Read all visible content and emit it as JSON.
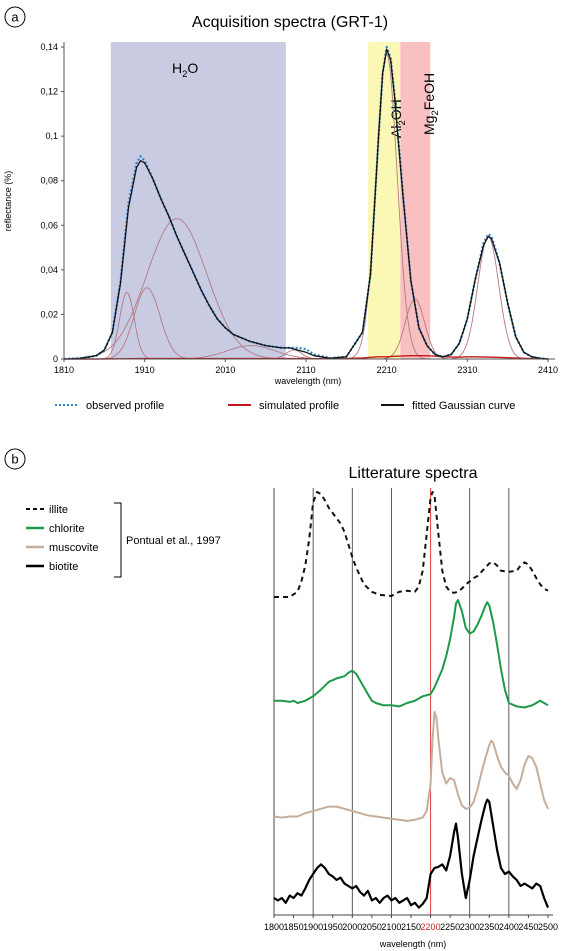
{
  "colors": {
    "band_h2o": "#c9cbe3",
    "band_aloh": "#fbf8b6",
    "band_mgfeoh": "#f8c0c0",
    "observed": "#2f83c6",
    "simulated": "#c21a1a",
    "component": "#b37a86",
    "fitted": "#111111",
    "illite": "#111111",
    "chlorite": "#1d9a47",
    "muscovite": "#c6ae9c",
    "biotite": "#000000",
    "ref_line": "#e04040",
    "ref_tick": "#d02020"
  },
  "panel_a": {
    "label": "a",
    "legend": {
      "observed": "observed profile",
      "simulated": "simulated profile",
      "fitted": "fitted Gaussian curve"
    }
  },
  "panel_b": {
    "label": "b",
    "legend_items": [
      "illite",
      "chlorite",
      "muscovite",
      "biotite"
    ],
    "reference": "Pontual et al., 1997"
  },
  "chart_data": [
    {
      "type": "line",
      "title": "Acquisition spectra (GRT-1)",
      "xlabel": "wavelength (nm)",
      "ylabel": "reflectance (%)",
      "xlim": [
        1810,
        2410
      ],
      "ylim": [
        0,
        0.14
      ],
      "x_ticks": [
        "1810",
        "1910",
        "2010",
        "2110",
        "2210",
        "2310",
        "2410"
      ],
      "y_ticks": [
        "0",
        "0,02",
        "0,04",
        "0,06",
        "0,08",
        "0,1",
        "0,12",
        "0,14"
      ],
      "bands": [
        {
          "label_main": "H",
          "label_sub": "2",
          "label_end": "O",
          "from": 1868,
          "to": 2085
        },
        {
          "label_main": "Al",
          "label_sub": "2",
          "label_end": "OH",
          "from": 2187,
          "to": 2227
        },
        {
          "label_main": "Mg",
          "label_sub": "2",
          "label_end": "FeOH",
          "from": 2227,
          "to": 2264
        }
      ],
      "series": [
        {
          "name": "observed profile",
          "style": "dotted",
          "x": [
            1810,
            1830,
            1850,
            1860,
            1870,
            1880,
            1890,
            1900,
            1905,
            1910,
            1920,
            1930,
            1940,
            1950,
            1960,
            1970,
            1980,
            1990,
            2000,
            2010,
            2020,
            2040,
            2060,
            2080,
            2090,
            2100,
            2110,
            2120,
            2140,
            2160,
            2180,
            2190,
            2200,
            2205,
            2210,
            2215,
            2220,
            2230,
            2240,
            2250,
            2260,
            2270,
            2280,
            2290,
            2300,
            2310,
            2320,
            2330,
            2336,
            2340,
            2350,
            2360,
            2370,
            2380,
            2390,
            2400,
            2410
          ],
          "y": [
            0,
            0.0003,
            0.0015,
            0.004,
            0.012,
            0.035,
            0.07,
            0.088,
            0.091,
            0.089,
            0.081,
            0.072,
            0.064,
            0.055,
            0.047,
            0.039,
            0.031,
            0.024,
            0.018,
            0.014,
            0.011,
            0.008,
            0.006,
            0.005,
            0.005,
            0.005,
            0.0045,
            0.002,
            0.0004,
            0.001,
            0.012,
            0.038,
            0.1,
            0.128,
            0.14,
            0.135,
            0.118,
            0.075,
            0.035,
            0.014,
            0.006,
            0.002,
            0.001,
            0.002,
            0.007,
            0.018,
            0.036,
            0.052,
            0.056,
            0.055,
            0.043,
            0.025,
            0.01,
            0.003,
            0.001,
            0.0003,
            0
          ]
        },
        {
          "name": "simulated profile",
          "style": "solid",
          "x": [
            1810,
            1850,
            1880,
            1910,
            1950,
            2000,
            2050,
            2100,
            2150,
            2180,
            2200,
            2210,
            2220,
            2240,
            2260,
            2280,
            2300,
            2310,
            2320,
            2340,
            2360,
            2380,
            2410
          ],
          "y": [
            0,
            0,
            0.0001,
            0.0002,
            0.0002,
            0.0002,
            0.0002,
            0.0002,
            0.0001,
            0.0005,
            0.001,
            0.001,
            0.0012,
            0.0015,
            0.0015,
            0.001,
            0.0008,
            0.001,
            0.001,
            0.0008,
            0.0006,
            0.0003,
            0
          ]
        },
        {
          "name": "fitted Gaussian curve",
          "style": "solid",
          "x": [
            1810,
            1830,
            1850,
            1860,
            1870,
            1880,
            1890,
            1900,
            1905,
            1910,
            1920,
            1930,
            1940,
            1950,
            1960,
            1970,
            1980,
            1990,
            2000,
            2010,
            2020,
            2040,
            2060,
            2080,
            2090,
            2100,
            2110,
            2120,
            2140,
            2160,
            2180,
            2190,
            2200,
            2205,
            2210,
            2215,
            2220,
            2230,
            2240,
            2250,
            2260,
            2270,
            2280,
            2290,
            2300,
            2310,
            2320,
            2330,
            2336,
            2340,
            2350,
            2360,
            2370,
            2380,
            2390,
            2400,
            2410
          ],
          "y": [
            0,
            0.0003,
            0.0015,
            0.004,
            0.012,
            0.034,
            0.068,
            0.086,
            0.089,
            0.088,
            0.081,
            0.072,
            0.064,
            0.055,
            0.047,
            0.039,
            0.031,
            0.024,
            0.018,
            0.014,
            0.011,
            0.008,
            0.006,
            0.005,
            0.005,
            0.004,
            0.003,
            0.0015,
            0.0003,
            0.001,
            0.012,
            0.038,
            0.1,
            0.128,
            0.139,
            0.134,
            0.117,
            0.074,
            0.035,
            0.014,
            0.006,
            0.002,
            0.001,
            0.002,
            0.007,
            0.018,
            0.036,
            0.051,
            0.055,
            0.054,
            0.043,
            0.025,
            0.01,
            0.003,
            0.001,
            0.0003,
            0
          ]
        }
      ],
      "gaussians": [
        {
          "center": 1888,
          "amp": 0.03,
          "sigma": 9
        },
        {
          "center": 1913,
          "amp": 0.032,
          "sigma": 16
        },
        {
          "center": 1950,
          "amp": 0.063,
          "sigma": 37
        },
        {
          "center": 2042,
          "amp": 0.006,
          "sigma": 30
        },
        {
          "center": 2095,
          "amp": 0.004,
          "sigma": 10
        },
        {
          "center": 2210,
          "amp": 0.137,
          "sigma": 13
        },
        {
          "center": 2245,
          "amp": 0.027,
          "sigma": 12
        },
        {
          "center": 2336,
          "amp": 0.055,
          "sigma": 13
        }
      ],
      "legend": "bottom"
    },
    {
      "type": "line",
      "title": "Litterature spectra",
      "xlabel": "wavelength (nm)",
      "xlim": [
        1800,
        2500
      ],
      "x_ticks": [
        "1800",
        "1850",
        "1900",
        "1950",
        "2000",
        "2050",
        "2100",
        "2150",
        "2200",
        "2250",
        "2300",
        "2350",
        "2400",
        "2450",
        "2500"
      ],
      "highlight_tick": "2200",
      "highlight_x": 2200,
      "grid_lines": [
        1900,
        2000,
        2100,
        2300,
        2400
      ],
      "offset_stacked": true,
      "series": [
        {
          "name": "illite",
          "style": "dashed",
          "x": [
            1800,
            1820,
            1840,
            1860,
            1870,
            1880,
            1890,
            1900,
            1910,
            1920,
            1930,
            1940,
            1950,
            1960,
            1970,
            1980,
            1990,
            2000,
            2010,
            2020,
            2030,
            2050,
            2070,
            2100,
            2120,
            2140,
            2160,
            2170,
            2180,
            2190,
            2200,
            2205,
            2210,
            2220,
            2230,
            2240,
            2250,
            2260,
            2270,
            2280,
            2290,
            2300,
            2310,
            2320,
            2340,
            2350,
            2360,
            2370,
            2380,
            2400,
            2420,
            2430,
            2440,
            2450,
            2460,
            2470,
            2480,
            2490,
            2500
          ],
          "y": [
            0.0,
            0.0,
            0.0,
            0.05,
            0.15,
            0.3,
            0.55,
            0.9,
            1.0,
            0.98,
            0.92,
            0.85,
            0.8,
            0.75,
            0.7,
            0.62,
            0.5,
            0.38,
            0.28,
            0.2,
            0.12,
            0.05,
            0.02,
            0.01,
            0.05,
            0.06,
            0.05,
            0.1,
            0.25,
            0.6,
            0.95,
            1.0,
            0.97,
            0.6,
            0.25,
            0.1,
            0.05,
            0.04,
            0.05,
            0.08,
            0.12,
            0.15,
            0.18,
            0.2,
            0.28,
            0.32,
            0.33,
            0.3,
            0.25,
            0.24,
            0.25,
            0.3,
            0.33,
            0.31,
            0.25,
            0.18,
            0.12,
            0.08,
            0.06
          ]
        },
        {
          "name": "chlorite",
          "style": "solid",
          "x": [
            1800,
            1820,
            1840,
            1850,
            1860,
            1880,
            1900,
            1920,
            1940,
            1960,
            1980,
            1990,
            2000,
            2010,
            2020,
            2030,
            2040,
            2050,
            2060,
            2080,
            2100,
            2120,
            2140,
            2160,
            2180,
            2200,
            2210,
            2220,
            2230,
            2240,
            2250,
            2260,
            2265,
            2270,
            2280,
            2290,
            2300,
            2310,
            2320,
            2330,
            2340,
            2345,
            2350,
            2360,
            2370,
            2380,
            2390,
            2400,
            2420,
            2440,
            2460,
            2480,
            2490,
            2500
          ],
          "y": [
            0.1,
            0.1,
            0.09,
            0.1,
            0.08,
            0.1,
            0.14,
            0.2,
            0.27,
            0.3,
            0.32,
            0.35,
            0.37,
            0.34,
            0.28,
            0.22,
            0.16,
            0.1,
            0.08,
            0.06,
            0.06,
            0.05,
            0.08,
            0.1,
            0.14,
            0.16,
            0.22,
            0.3,
            0.38,
            0.5,
            0.65,
            0.85,
            0.97,
            1.0,
            0.9,
            0.75,
            0.7,
            0.72,
            0.78,
            0.86,
            0.95,
            0.98,
            0.95,
            0.8,
            0.6,
            0.38,
            0.2,
            0.08,
            0.05,
            0.04,
            0.06,
            0.1,
            0.08,
            0.06
          ]
        },
        {
          "name": "muscovite",
          "style": "solid",
          "x": [
            1800,
            1820,
            1840,
            1860,
            1880,
            1900,
            1920,
            1940,
            1960,
            1980,
            2000,
            2020,
            2040,
            2060,
            2080,
            2100,
            2120,
            2140,
            2160,
            2180,
            2190,
            2200,
            2205,
            2210,
            2215,
            2220,
            2230,
            2240,
            2250,
            2260,
            2270,
            2280,
            2290,
            2300,
            2310,
            2320,
            2330,
            2340,
            2350,
            2355,
            2360,
            2370,
            2380,
            2390,
            2400,
            2410,
            2420,
            2430,
            2440,
            2450,
            2460,
            2470,
            2480,
            2490,
            2500
          ],
          "y": [
            0.05,
            0.04,
            0.05,
            0.05,
            0.08,
            0.1,
            0.12,
            0.14,
            0.14,
            0.12,
            0.1,
            0.08,
            0.06,
            0.05,
            0.04,
            0.03,
            0.02,
            0.01,
            0.02,
            0.04,
            0.1,
            0.35,
            0.75,
            1.0,
            0.95,
            0.75,
            0.45,
            0.35,
            0.4,
            0.38,
            0.25,
            0.15,
            0.12,
            0.13,
            0.18,
            0.3,
            0.45,
            0.58,
            0.7,
            0.74,
            0.72,
            0.6,
            0.5,
            0.45,
            0.42,
            0.35,
            0.3,
            0.38,
            0.52,
            0.6,
            0.58,
            0.5,
            0.35,
            0.2,
            0.12
          ]
        },
        {
          "name": "biotite",
          "style": "solid",
          "x": [
            1800,
            1810,
            1820,
            1830,
            1840,
            1850,
            1860,
            1870,
            1880,
            1890,
            1900,
            1910,
            1920,
            1930,
            1940,
            1950,
            1960,
            1970,
            1980,
            1990,
            2000,
            2010,
            2020,
            2030,
            2040,
            2050,
            2060,
            2070,
            2080,
            2090,
            2100,
            2110,
            2120,
            2130,
            2140,
            2150,
            2160,
            2170,
            2180,
            2190,
            2200,
            2210,
            2220,
            2230,
            2240,
            2250,
            2260,
            2265,
            2270,
            2280,
            2290,
            2300,
            2310,
            2320,
            2330,
            2340,
            2345,
            2350,
            2360,
            2370,
            2380,
            2390,
            2400,
            2410,
            2420,
            2430,
            2440,
            2450,
            2460,
            2470,
            2480,
            2490,
            2500
          ],
          "y": [
            0.1,
            0.08,
            0.1,
            0.06,
            0.12,
            0.1,
            0.14,
            0.12,
            0.18,
            0.25,
            0.3,
            0.35,
            0.38,
            0.35,
            0.3,
            0.28,
            0.25,
            0.27,
            0.22,
            0.2,
            0.18,
            0.2,
            0.15,
            0.12,
            0.16,
            0.08,
            0.1,
            0.06,
            0.1,
            0.12,
            0.08,
            0.1,
            0.06,
            0.08,
            0.1,
            0.04,
            0.06,
            0.02,
            0.05,
            0.1,
            0.3,
            0.35,
            0.36,
            0.38,
            0.33,
            0.45,
            0.65,
            0.72,
            0.6,
            0.3,
            0.1,
            0.25,
            0.45,
            0.6,
            0.75,
            0.88,
            0.92,
            0.9,
            0.7,
            0.5,
            0.35,
            0.3,
            0.32,
            0.28,
            0.25,
            0.2,
            0.22,
            0.2,
            0.18,
            0.22,
            0.2,
            0.1,
            0.02
          ]
        }
      ],
      "legend": "left"
    }
  ]
}
